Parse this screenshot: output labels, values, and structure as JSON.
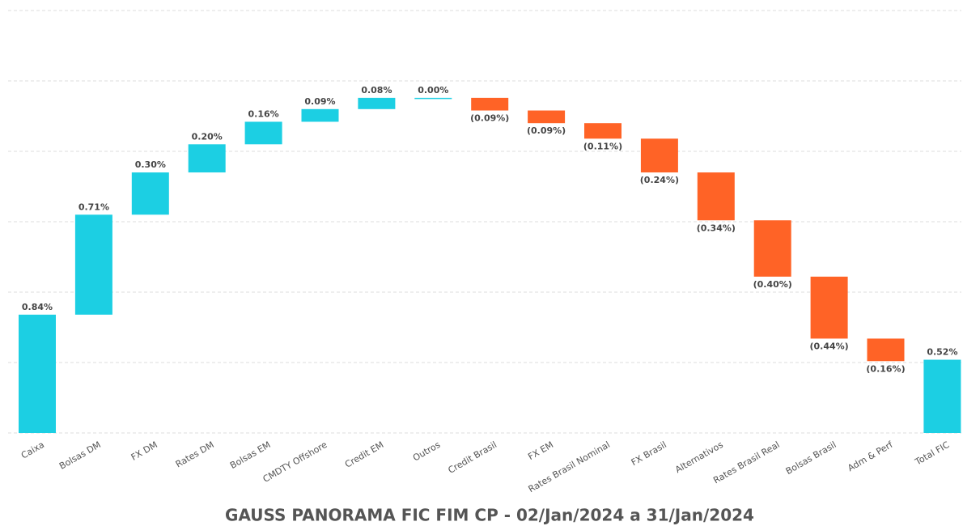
{
  "chart_data": {
    "type": "waterfall",
    "title": "GAUSS PANORAMA FIC FIM CP - 02/Jan/2024 a 31/Jan/2024",
    "categories": [
      "Caixa",
      "Bolsas DM",
      "FX DM",
      "Rates DM",
      "Bolsas EM",
      "CMDTY Offshore",
      "Credit EM",
      "Outros",
      "Credit Brasil",
      "FX EM",
      "Rates Brasil Nominal",
      "FX Brasil",
      "Alternativos",
      "Rates Brasil Real",
      "Bolsas Brasil",
      "Adm & Perf",
      "Total FIC"
    ],
    "values": [
      0.84,
      0.71,
      0.3,
      0.2,
      0.16,
      0.09,
      0.08,
      0.0,
      -0.09,
      -0.09,
      -0.11,
      -0.24,
      -0.34,
      -0.4,
      -0.44,
      -0.16,
      0.52
    ],
    "value_labels": [
      "0.84%",
      "0.71%",
      "0.30%",
      "0.20%",
      "0.16%",
      "0.09%",
      "0.08%",
      "0.00%",
      "(0.09%)",
      "(0.09%)",
      "(0.11%)",
      "(0.24%)",
      "(0.34%)",
      "(0.40%)",
      "(0.44%)",
      "(0.16%)",
      "0.52%"
    ],
    "last_is_total": true,
    "positive_color": "#1ccfe3",
    "negative_color": "#ff6326",
    "ylim": [
      0,
      3
    ],
    "yticks": [
      0,
      0.5,
      1,
      1.5,
      2,
      2.5,
      3
    ],
    "grid": true
  }
}
